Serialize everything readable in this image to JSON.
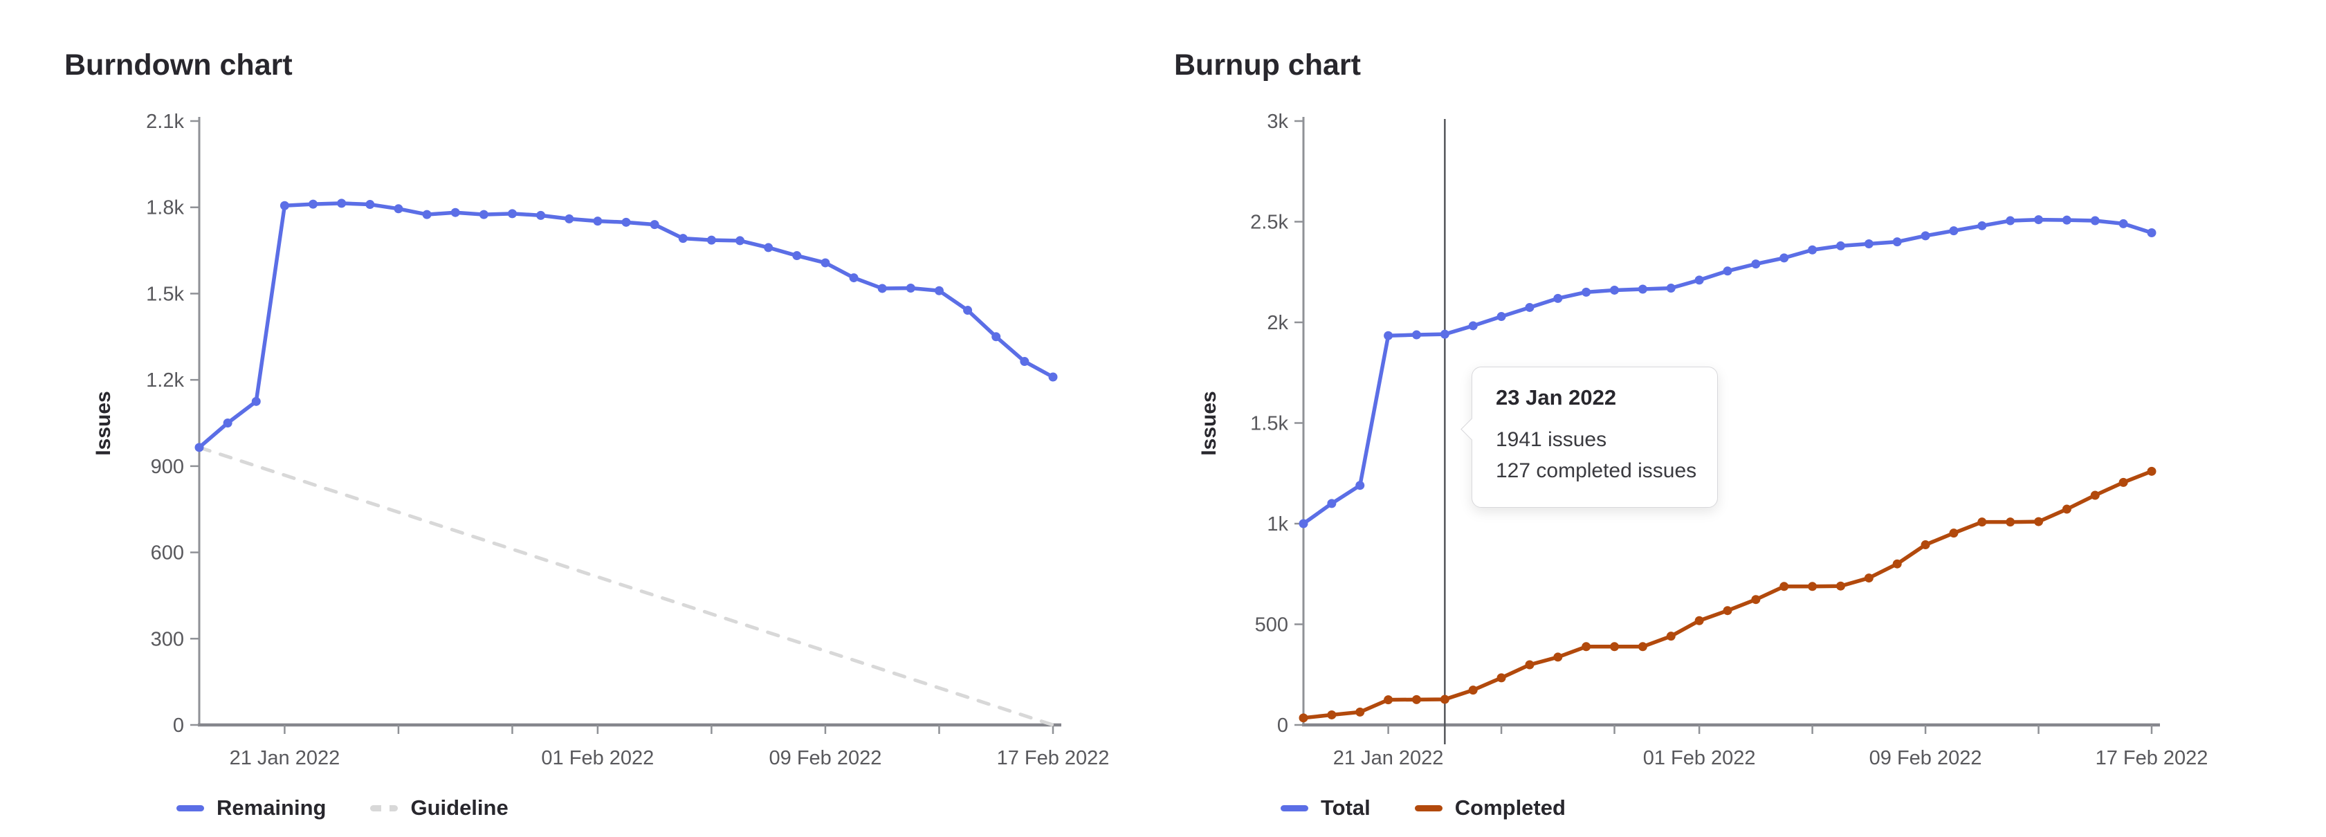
{
  "tooltip": {
    "title": "23 Jan 2022",
    "issues_line": "1941 issues",
    "completed_line": "127 completed issues"
  },
  "chart_data": [
    {
      "id": "burndown",
      "type": "line",
      "title": "Burndown chart",
      "ylabel": "Issues",
      "ylim": [
        0,
        2100
      ],
      "grid": false,
      "legend_position": "bottom-left",
      "y_ticks": [
        {
          "v": 0,
          "label": "0"
        },
        {
          "v": 300,
          "label": "300"
        },
        {
          "v": 600,
          "label": "600"
        },
        {
          "v": 900,
          "label": "900"
        },
        {
          "v": 1200,
          "label": "1.2k"
        },
        {
          "v": 1500,
          "label": "1.5k"
        },
        {
          "v": 1800,
          "label": "1.8k"
        },
        {
          "v": 2100,
          "label": "2.1k"
        }
      ],
      "x_ticks": [
        {
          "i": 3,
          "label": "21 Jan 2022"
        },
        {
          "i": 7,
          "label": ""
        },
        {
          "i": 11,
          "label": ""
        },
        {
          "i": 14,
          "label": "01 Feb 2022"
        },
        {
          "i": 18,
          "label": ""
        },
        {
          "i": 22,
          "label": "09 Feb 2022"
        },
        {
          "i": 26,
          "label": ""
        },
        {
          "i": 30,
          "label": "17 Feb 2022"
        }
      ],
      "categories": [
        "18 Jan 2022",
        "19 Jan 2022",
        "20 Jan 2022",
        "21 Jan 2022",
        "22 Jan 2022",
        "23 Jan 2022",
        "24 Jan 2022",
        "25 Jan 2022",
        "26 Jan 2022",
        "27 Jan 2022",
        "28 Jan 2022",
        "29 Jan 2022",
        "30 Jan 2022",
        "31 Jan 2022",
        "01 Feb 2022",
        "02 Feb 2022",
        "03 Feb 2022",
        "04 Feb 2022",
        "05 Feb 2022",
        "06 Feb 2022",
        "07 Feb 2022",
        "08 Feb 2022",
        "09 Feb 2022",
        "10 Feb 2022",
        "11 Feb 2022",
        "12 Feb 2022",
        "13 Feb 2022",
        "14 Feb 2022",
        "15 Feb 2022",
        "16 Feb 2022",
        "17 Feb 2022"
      ],
      "series": [
        {
          "name": "Guideline",
          "kind": "guideline",
          "color": "#d8d8d8",
          "dashed": true,
          "values": [
            965,
            0
          ]
        },
        {
          "name": "Remaining",
          "color": "#5b6ee6",
          "dashed": false,
          "values": [
            965,
            1050,
            1125,
            1806,
            1811,
            1814,
            1810,
            1795,
            1775,
            1782,
            1775,
            1778,
            1772,
            1760,
            1752,
            1748,
            1740,
            1692,
            1686,
            1684,
            1660,
            1632,
            1607,
            1555,
            1518,
            1519,
            1510,
            1442,
            1350,
            1264,
            1210
          ]
        }
      ],
      "legend": [
        {
          "label": "Remaining",
          "color": "#5b6ee6",
          "dashed": false
        },
        {
          "label": "Guideline",
          "color": "#d8d8d8",
          "dashed": true
        }
      ]
    },
    {
      "id": "burnup",
      "type": "line",
      "title": "Burnup chart",
      "ylabel": "Issues",
      "ylim": [
        0,
        3000
      ],
      "grid": false,
      "legend_position": "bottom-left",
      "hover_index": 5,
      "hover_date": "23 Jan 2022",
      "y_ticks": [
        {
          "v": 0,
          "label": "0"
        },
        {
          "v": 500,
          "label": "500"
        },
        {
          "v": 1000,
          "label": "1k"
        },
        {
          "v": 1500,
          "label": "1.5k"
        },
        {
          "v": 2000,
          "label": "2k"
        },
        {
          "v": 2500,
          "label": "2.5k"
        },
        {
          "v": 3000,
          "label": "3k"
        }
      ],
      "x_ticks": [
        {
          "i": 3,
          "label": "21 Jan 2022"
        },
        {
          "i": 7,
          "label": ""
        },
        {
          "i": 11,
          "label": ""
        },
        {
          "i": 14,
          "label": "01 Feb 2022"
        },
        {
          "i": 18,
          "label": ""
        },
        {
          "i": 22,
          "label": "09 Feb 2022"
        },
        {
          "i": 26,
          "label": ""
        },
        {
          "i": 30,
          "label": "17 Feb 2022"
        }
      ],
      "categories": [
        "18 Jan 2022",
        "19 Jan 2022",
        "20 Jan 2022",
        "21 Jan 2022",
        "22 Jan 2022",
        "23 Jan 2022",
        "24 Jan 2022",
        "25 Jan 2022",
        "26 Jan 2022",
        "27 Jan 2022",
        "28 Jan 2022",
        "29 Jan 2022",
        "30 Jan 2022",
        "31 Jan 2022",
        "01 Feb 2022",
        "02 Feb 2022",
        "03 Feb 2022",
        "04 Feb 2022",
        "05 Feb 2022",
        "06 Feb 2022",
        "07 Feb 2022",
        "08 Feb 2022",
        "09 Feb 2022",
        "10 Feb 2022",
        "11 Feb 2022",
        "12 Feb 2022",
        "13 Feb 2022",
        "14 Feb 2022",
        "15 Feb 2022",
        "16 Feb 2022",
        "17 Feb 2022"
      ],
      "series": [
        {
          "name": "Total",
          "color": "#5b6ee6",
          "dashed": false,
          "values": [
            1000,
            1100,
            1190,
            1934,
            1938,
            1941,
            1983,
            2029,
            2074,
            2119,
            2150,
            2160,
            2165,
            2170,
            2210,
            2255,
            2290,
            2320,
            2360,
            2380,
            2390,
            2400,
            2430,
            2455,
            2480,
            2505,
            2510,
            2508,
            2505,
            2490,
            2445
          ]
        },
        {
          "name": "Completed",
          "color": "#b2490c",
          "dashed": false,
          "values": [
            35,
            50,
            64,
            125,
            126,
            127,
            173,
            234,
            299,
            337,
            389,
            389,
            389,
            441,
            518,
            568,
            623,
            688,
            688,
            690,
            730,
            800,
            895,
            953,
            1008,
            1008,
            1010,
            1072,
            1141,
            1205,
            1260
          ]
        }
      ],
      "legend": [
        {
          "label": "Total",
          "color": "#5b6ee6",
          "dashed": false
        },
        {
          "label": "Completed",
          "color": "#b2490c",
          "dashed": false
        }
      ]
    }
  ]
}
